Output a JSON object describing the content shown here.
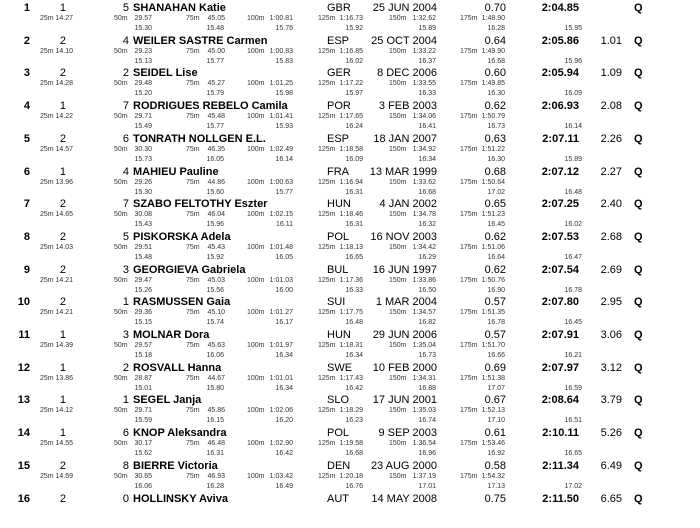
{
  "split_labels": [
    "25m",
    "50m",
    "75m",
    "100m",
    "125m",
    "150m",
    "175m"
  ],
  "entries": [
    {
      "rank": "1",
      "heat": "1",
      "lane": "5",
      "name": "SHANAHAN Katie",
      "nat": "GBR",
      "dob": "25 JUN 2004",
      "rt": "0.70",
      "time": "2:04.85",
      "behind": "",
      "q": "Q",
      "splits": [
        "14.27",
        "29.57",
        "45.05",
        "1:00.81",
        "1:16.73",
        "1:32.62",
        "1:48.90"
      ],
      "diffs": [
        "15.30",
        "15.48",
        "15.76",
        "15.92",
        "15.89",
        "16.28",
        "15.95"
      ]
    },
    {
      "rank": "2",
      "heat": "2",
      "lane": "4",
      "name": "WEILER SASTRE Carmen",
      "nat": "ESP",
      "dob": "25 OCT 2004",
      "rt": "0.64",
      "time": "2:05.86",
      "behind": "1.01",
      "q": "Q",
      "splits": [
        "14.10",
        "29.23",
        "45.00",
        "1:00.83",
        "1:16.85",
        "1:33.22",
        "1:49.90"
      ],
      "diffs": [
        "15.13",
        "15.77",
        "15.83",
        "16.02",
        "16.37",
        "16.68",
        "15.96"
      ]
    },
    {
      "rank": "3",
      "heat": "2",
      "lane": "2",
      "name": "SEIDEL Lise",
      "nat": "GER",
      "dob": "8 DEC 2006",
      "rt": "0.60",
      "time": "2:05.94",
      "behind": "1.09",
      "q": "Q",
      "splits": [
        "14.28",
        "29.48",
        "45.27",
        "1:01.25",
        "1:17.22",
        "1:33.55",
        "1:49.85"
      ],
      "diffs": [
        "15.20",
        "15.79",
        "15.98",
        "15.97",
        "16.33",
        "16.30",
        "16.09"
      ]
    },
    {
      "rank": "4",
      "heat": "1",
      "lane": "7",
      "name": "RODRIGUES REBELO Camila",
      "nat": "POR",
      "dob": "3 FEB 2003",
      "rt": "0.62",
      "time": "2:06.93",
      "behind": "2.08",
      "q": "Q",
      "splits": [
        "14.22",
        "29.71",
        "45.48",
        "1:01.41",
        "1:17.65",
        "1:34.06",
        "1:50.79"
      ],
      "diffs": [
        "15.49",
        "15.77",
        "15.93",
        "16.24",
        "16.41",
        "16.73",
        "16.14"
      ]
    },
    {
      "rank": "5",
      "heat": "2",
      "lane": "6",
      "name": "TONRATH NOLLGEN E.L.",
      "nat": "ESP",
      "dob": "18 JAN 2007",
      "rt": "0.63",
      "time": "2:07.11",
      "behind": "2.26",
      "q": "Q",
      "splits": [
        "14.57",
        "30.30",
        "46.35",
        "1:02.49",
        "1:18.58",
        "1:34.92",
        "1:51.22"
      ],
      "diffs": [
        "15.73",
        "16.05",
        "16.14",
        "16.09",
        "16.34",
        "16.30",
        "15.89"
      ]
    },
    {
      "rank": "6",
      "heat": "1",
      "lane": "4",
      "name": "MAHIEU Pauline",
      "nat": "FRA",
      "dob": "13 MAR 1999",
      "rt": "0.68",
      "time": "2:07.12",
      "behind": "2.27",
      "q": "Q",
      "splits": [
        "13.96",
        "29.26",
        "44.86",
        "1:00.63",
        "1:16.94",
        "1:33.62",
        "1:50.64"
      ],
      "diffs": [
        "15.30",
        "15.60",
        "15.77",
        "16.31",
        "16.68",
        "17.02",
        "16.48"
      ]
    },
    {
      "rank": "7",
      "heat": "2",
      "lane": "7",
      "name": "SZABO FELTOTHY Eszter",
      "nat": "HUN",
      "dob": "4 JAN 2002",
      "rt": "0.65",
      "time": "2:07.25",
      "behind": "2.40",
      "q": "Q",
      "splits": [
        "14.65",
        "30.08",
        "46.04",
        "1:02.15",
        "1:18.46",
        "1:34.78",
        "1:51.23"
      ],
      "diffs": [
        "15.43",
        "15.96",
        "16.11",
        "16.31",
        "16.32",
        "16.45",
        "16.02"
      ]
    },
    {
      "rank": "8",
      "heat": "2",
      "lane": "5",
      "name": "PISKORSKA Adela",
      "nat": "POL",
      "dob": "16 NOV 2003",
      "rt": "0.62",
      "time": "2:07.53",
      "behind": "2.68",
      "q": "Q",
      "splits": [
        "14.03",
        "29.51",
        "45.43",
        "1:01.48",
        "1:18.13",
        "1:34.42",
        "1:51.06"
      ],
      "diffs": [
        "15.48",
        "15.92",
        "16.05",
        "16.65",
        "16.29",
        "16.64",
        "16.47"
      ]
    },
    {
      "rank": "9",
      "heat": "2",
      "lane": "3",
      "name": "GEORGIEVA Gabriela",
      "nat": "BUL",
      "dob": "16 JUN 1997",
      "rt": "0.62",
      "time": "2:07.54",
      "behind": "2.69",
      "q": "Q",
      "splits": [
        "14.21",
        "29.47",
        "45.03",
        "1:01.03",
        "1:17.36",
        "1:33.86",
        "1:50.76"
      ],
      "diffs": [
        "15.26",
        "15.56",
        "16.00",
        "16.33",
        "16.50",
        "16.90",
        "16.78"
      ]
    },
    {
      "rank": "10",
      "heat": "2",
      "lane": "1",
      "name": "RASMUSSEN Gaia",
      "nat": "SUI",
      "dob": "1 MAR 2004",
      "rt": "0.57",
      "time": "2:07.80",
      "behind": "2.95",
      "q": "Q",
      "splits": [
        "14.21",
        "29.36",
        "45.10",
        "1:01.27",
        "1:17.75",
        "1:34.57",
        "1:51.35"
      ],
      "diffs": [
        "15.15",
        "15.74",
        "16.17",
        "16.48",
        "16.82",
        "16.78",
        "16.45"
      ]
    },
    {
      "rank": "11",
      "heat": "1",
      "lane": "3",
      "name": "MOLNAR Dora",
      "nat": "HUN",
      "dob": "29 JUN 2006",
      "rt": "0.57",
      "time": "2:07.91",
      "behind": "3.06",
      "q": "Q",
      "splits": [
        "14.39",
        "29.57",
        "45.63",
        "1:01.97",
        "1:18.31",
        "1:35.04",
        "1:51.70"
      ],
      "diffs": [
        "15.18",
        "16.06",
        "16.34",
        "16.34",
        "16.73",
        "16.66",
        "16.21"
      ]
    },
    {
      "rank": "12",
      "heat": "1",
      "lane": "2",
      "name": "ROSVALL Hanna",
      "nat": "SWE",
      "dob": "10 FEB 2000",
      "rt": "0.69",
      "time": "2:07.97",
      "behind": "3.12",
      "q": "Q",
      "splits": [
        "13.86",
        "28.87",
        "44.67",
        "1:01.01",
        "1:17.43",
        "1:34.31",
        "1:51.38"
      ],
      "diffs": [
        "15.01",
        "15.80",
        "16.34",
        "16.42",
        "16.88",
        "17.07",
        "16.59"
      ]
    },
    {
      "rank": "13",
      "heat": "1",
      "lane": "1",
      "name": "SEGEL Janja",
      "nat": "SLO",
      "dob": "17 JUN 2001",
      "rt": "0.67",
      "time": "2:08.64",
      "behind": "3.79",
      "q": "Q",
      "splits": [
        "14.12",
        "29.71",
        "45.86",
        "1:02.06",
        "1:18.29",
        "1:35.03",
        "1:52.13"
      ],
      "diffs": [
        "15.59",
        "16.15",
        "16.20",
        "16.23",
        "16.74",
        "17.10",
        "16.51"
      ]
    },
    {
      "rank": "14",
      "heat": "1",
      "lane": "6",
      "name": "KNOP Aleksandra",
      "nat": "POL",
      "dob": "9 SEP 2003",
      "rt": "0.61",
      "time": "2:10.11",
      "behind": "5.26",
      "q": "Q",
      "splits": [
        "14.55",
        "30.17",
        "46.48",
        "1:02.90",
        "1:19.58",
        "1:36.54",
        "1:53.46"
      ],
      "diffs": [
        "15.62",
        "16.31",
        "16.42",
        "16.68",
        "16.96",
        "16.92",
        "16.65"
      ]
    },
    {
      "rank": "15",
      "heat": "2",
      "lane": "8",
      "name": "BIERRE Victoria",
      "nat": "DEN",
      "dob": "23 AUG 2000",
      "rt": "0.58",
      "time": "2:11.34",
      "behind": "6.49",
      "q": "Q",
      "splits": [
        "14.59",
        "30.65",
        "46.93",
        "1:03.42",
        "1:20.18",
        "1:37.19",
        "1:54.32"
      ],
      "diffs": [
        "16.06",
        "16.28",
        "16.49",
        "16.76",
        "17.01",
        "17.13",
        "17.02"
      ]
    },
    {
      "rank": "16",
      "heat": "2",
      "lane": "0",
      "name": "HOLLINSKY Aviva",
      "nat": "AUT",
      "dob": "14 MAY 2008",
      "rt": "0.75",
      "time": "2:11.50",
      "behind": "6.65",
      "q": "Q",
      "splits": [],
      "diffs": []
    }
  ]
}
